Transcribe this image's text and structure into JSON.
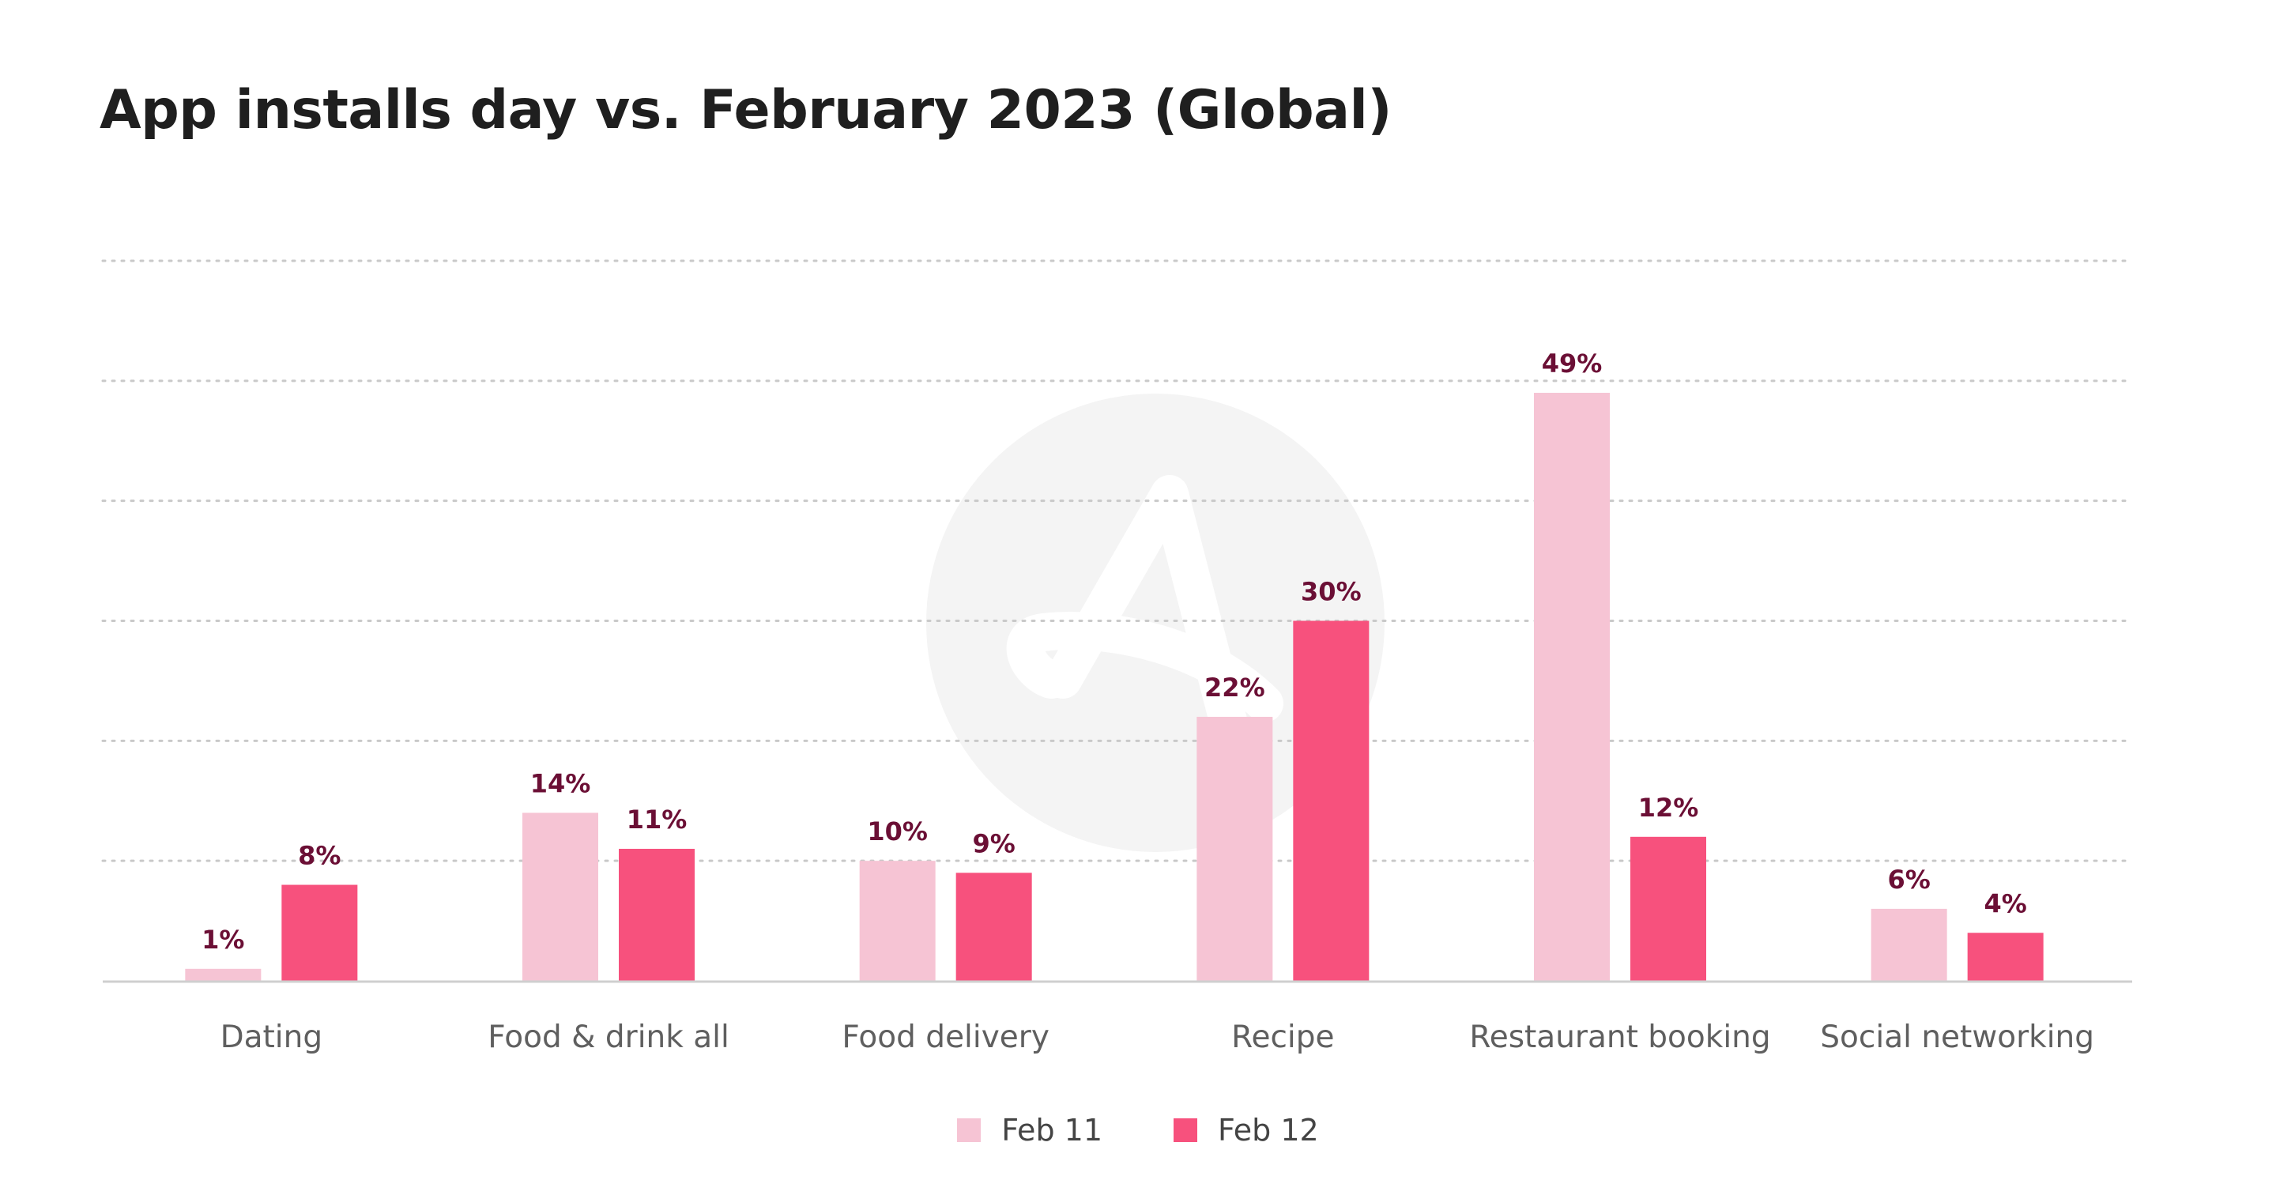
{
  "title": "App installs day vs. February 2023 (Global)",
  "colors": {
    "series_1": "#f6c4d4",
    "series_2": "#f7517d",
    "data_label": "#6b0f35",
    "axis_label": "#5f5f5f",
    "grid": "#c9c9c9",
    "baseline": "#cfcfcf",
    "watermark": "#f4f4f4"
  },
  "watermark_icon": "adjust-logo-icon",
  "chart_data": {
    "type": "bar",
    "title": "App installs day vs. February 2023 (Global)",
    "xlabel": "",
    "ylabel": "",
    "categories": [
      "Dating",
      "Food & drink all",
      "Food delivery",
      "Recipe",
      "Restaurant booking",
      "Social networking"
    ],
    "series": [
      {
        "name": "Feb 11",
        "values": [
          1,
          14,
          10,
          22,
          49,
          6
        ],
        "labels": [
          "1%",
          "14%",
          "10%",
          "22%",
          "49%",
          "6%"
        ]
      },
      {
        "name": "Feb 12",
        "values": [
          8,
          11,
          9,
          30,
          12,
          4
        ],
        "labels": [
          "8%",
          "11%",
          "9%",
          "30%",
          "12%",
          "4%"
        ]
      }
    ],
    "ylim": [
      0,
      60
    ],
    "grid": true,
    "grid_style": "dotted",
    "y_tick_labels": false,
    "legend": "bottom-center"
  }
}
